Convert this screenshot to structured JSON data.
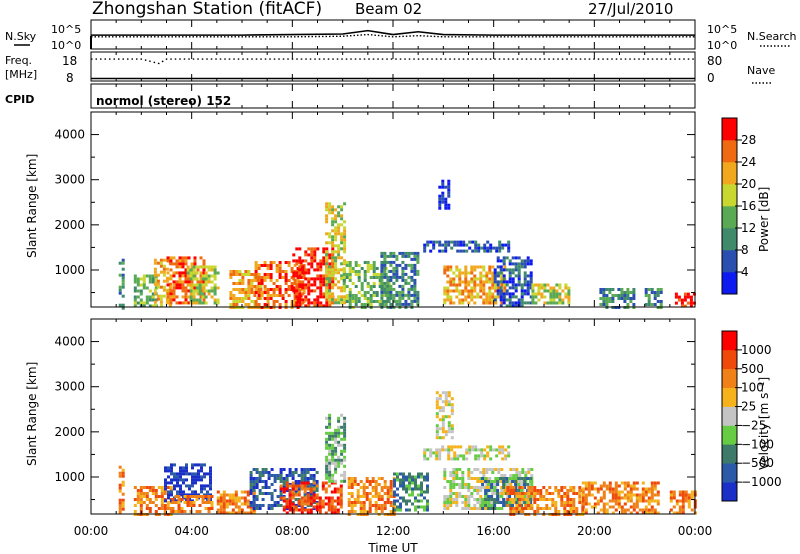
{
  "header": {
    "title": "Zhongshan Station (fitACF)",
    "beam": "Beam 02",
    "date": "27/Jul/2010"
  },
  "top_panels": {
    "nsky_label": "N.Sky",
    "nsearch_label": "N.Search",
    "noise_ticks": [
      "10^5",
      "10^0"
    ],
    "freq_label": "Freq.",
    "freq_unit": "[MHz]",
    "freq_ticks": [
      "18",
      "8"
    ],
    "nave_label": "Nave",
    "nave_ticks": [
      "80",
      "0"
    ],
    "cpid_label": "CPID",
    "cpid_text": "normol (stereo) 152"
  },
  "axes": {
    "ylabel": "Slant Range [km]",
    "xlabel": "Time UT",
    "x_ticks": [
      "00:00",
      "04:00",
      "08:00",
      "12:00",
      "16:00",
      "20:00",
      "00:00"
    ],
    "y_ticks": [
      "1000",
      "2000",
      "3000",
      "4000"
    ]
  },
  "colorbars": {
    "power": {
      "label": "Power [dB]",
      "ticks": [
        "4",
        "8",
        "12",
        "16",
        "20",
        "24",
        "28"
      ],
      "colors": [
        "#0d1bf0",
        "#2a4fb0",
        "#3f8a6a",
        "#5aaa55",
        "#c8d830",
        "#f2a81e",
        "#ef6a10",
        "#ff0000"
      ]
    },
    "velocity": {
      "label": "Velocity [m s⁻¹]",
      "ticks": [
        "1000",
        "500",
        "100",
        "25",
        "−25",
        "−100",
        "−500",
        "−1000"
      ],
      "colors": [
        "#1a2ec8",
        "#2a5aa8",
        "#3d7a6a",
        "#66cc44",
        "#c4c4c4",
        "#f5b21a",
        "#f08018",
        "#ef4a0a",
        "#ff0000"
      ]
    }
  },
  "chart_data": [
    {
      "type": "line",
      "title": "N.Sky / N.Search",
      "x": [
        0,
        2,
        4,
        6,
        8,
        10,
        11,
        12,
        13,
        14,
        16,
        18,
        20,
        22,
        24
      ],
      "series": [
        {
          "name": "N.Sky",
          "values": [
            2.3,
            2.3,
            2.3,
            2.3,
            2.4,
            2.5,
            3.1,
            2.4,
            2.9,
            2.4,
            2.3,
            2.3,
            2.3,
            2.3,
            2.3
          ]
        },
        {
          "name": "N.Search",
          "values": [
            2.0,
            2.0,
            2.0,
            2.0,
            2.0,
            2.1,
            2.4,
            2.0,
            2.2,
            2.0,
            2.0,
            2.0,
            2.0,
            2.0,
            2.0
          ]
        }
      ],
      "xlim": [
        0,
        24
      ]
    },
    {
      "type": "line",
      "title": "Freq. / Nave",
      "x": [
        0,
        2,
        2.7,
        3,
        4,
        8,
        12,
        16,
        20,
        24
      ],
      "series": [
        {
          "name": "Freq.",
          "values": [
            17.5,
            17.5,
            15.5,
            17.5,
            17.5,
            17.5,
            17.5,
            17.5,
            17.5,
            17.5
          ]
        },
        {
          "name": "Nave",
          "values": [
            5,
            5,
            5,
            5,
            5,
            5,
            5,
            5,
            5,
            5
          ]
        }
      ],
      "xlim": [
        0,
        24
      ]
    },
    {
      "type": "heatmap",
      "title": "Power",
      "xlabel": "Time UT",
      "ylabel": "Slant Range [km]",
      "xlim": [
        0,
        24
      ],
      "ylim": [
        180,
        4500
      ],
      "colorbar_label": "Power [dB]",
      "regions": [
        {
          "t0": 1.1,
          "t1": 1.3,
          "r0": 180,
          "r1": 1250,
          "level": 2
        },
        {
          "t0": 1.7,
          "t1": 2.6,
          "r0": 180,
          "r1": 900,
          "level": 3
        },
        {
          "t0": 2.5,
          "t1": 3.2,
          "r0": 200,
          "r1": 1250,
          "level": 5
        },
        {
          "t0": 3.0,
          "t1": 4.5,
          "r0": 300,
          "r1": 1300,
          "level": 6
        },
        {
          "t0": 3.8,
          "t1": 5.0,
          "r0": 300,
          "r1": 1100,
          "level": 4
        },
        {
          "t0": 5.5,
          "t1": 6.8,
          "r0": 180,
          "r1": 1000,
          "level": 5
        },
        {
          "t0": 6.5,
          "t1": 8.5,
          "r0": 200,
          "r1": 1200,
          "level": 6
        },
        {
          "t0": 8.0,
          "t1": 9.6,
          "r0": 200,
          "r1": 1500,
          "level": 7
        },
        {
          "t0": 9.3,
          "t1": 10.1,
          "r0": 300,
          "r1": 2500,
          "level": 4
        },
        {
          "t0": 10.0,
          "t1": 11.8,
          "r0": 200,
          "r1": 1200,
          "level": 3
        },
        {
          "t0": 11.5,
          "t1": 13.0,
          "r0": 200,
          "r1": 1400,
          "level": 2
        },
        {
          "t0": 13.2,
          "t1": 16.6,
          "r0": 1400,
          "r1": 1650,
          "level": 1
        },
        {
          "t0": 13.8,
          "t1": 14.2,
          "r0": 2400,
          "r1": 3000,
          "level": 0
        },
        {
          "t0": 14.0,
          "t1": 16.5,
          "r0": 300,
          "r1": 1100,
          "level": 5
        },
        {
          "t0": 16.0,
          "t1": 17.5,
          "r0": 200,
          "r1": 1300,
          "level": 1
        },
        {
          "t0": 17.5,
          "t1": 19.0,
          "r0": 300,
          "r1": 700,
          "level": 4
        },
        {
          "t0": 20.2,
          "t1": 21.6,
          "r0": 200,
          "r1": 600,
          "level": 2
        },
        {
          "t0": 22.0,
          "t1": 22.6,
          "r0": 200,
          "r1": 600,
          "level": 2
        },
        {
          "t0": 23.2,
          "t1": 24.0,
          "r0": 180,
          "r1": 500,
          "level": 7
        }
      ]
    },
    {
      "type": "heatmap",
      "title": "Velocity",
      "xlabel": "Time UT",
      "ylabel": "Slant Range [km]",
      "xlim": [
        0,
        24
      ],
      "ylim": [
        180,
        4500
      ],
      "colorbar_label": "Velocity [m s⁻¹]",
      "regions": [
        {
          "t0": 1.1,
          "t1": 1.3,
          "r0": 180,
          "r1": 1250,
          "level": 6
        },
        {
          "t0": 1.7,
          "t1": 3.2,
          "r0": 180,
          "r1": 800,
          "level": 6
        },
        {
          "t0": 2.9,
          "t1": 4.8,
          "r0": 500,
          "r1": 1300,
          "level": 0
        },
        {
          "t0": 3.2,
          "t1": 4.8,
          "r0": 250,
          "r1": 600,
          "level": 6
        },
        {
          "t0": 5.0,
          "t1": 6.5,
          "r0": 180,
          "r1": 700,
          "level": 6
        },
        {
          "t0": 6.3,
          "t1": 9.0,
          "r0": 300,
          "r1": 1200,
          "level": 1
        },
        {
          "t0": 7.5,
          "t1": 10.0,
          "r0": 180,
          "r1": 900,
          "level": 7
        },
        {
          "t0": 9.3,
          "t1": 10.1,
          "r0": 900,
          "r1": 2400,
          "level": 3
        },
        {
          "t0": 10.2,
          "t1": 12.0,
          "r0": 180,
          "r1": 1000,
          "level": 6
        },
        {
          "t0": 12.0,
          "t1": 13.4,
          "r0": 300,
          "r1": 1100,
          "level": 2
        },
        {
          "t0": 13.2,
          "t1": 16.6,
          "r0": 1400,
          "r1": 1700,
          "level": 4
        },
        {
          "t0": 13.7,
          "t1": 14.3,
          "r0": 1900,
          "r1": 2900,
          "level": 4
        },
        {
          "t0": 14.0,
          "t1": 17.5,
          "r0": 300,
          "r1": 1200,
          "level": 4
        },
        {
          "t0": 15.5,
          "t1": 17.5,
          "r0": 300,
          "r1": 1000,
          "level": 2
        },
        {
          "t0": 16.5,
          "t1": 19.5,
          "r0": 180,
          "r1": 800,
          "level": 6
        },
        {
          "t0": 19.5,
          "t1": 22.5,
          "r0": 180,
          "r1": 900,
          "level": 6
        },
        {
          "t0": 23.0,
          "t1": 24.0,
          "r0": 180,
          "r1": 700,
          "level": 6
        }
      ]
    }
  ]
}
